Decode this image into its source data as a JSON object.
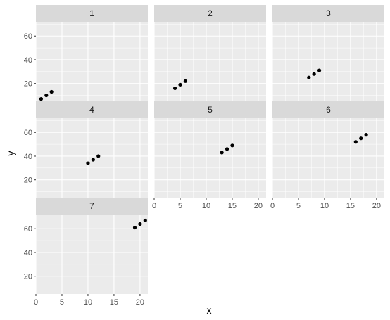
{
  "chart_data": {
    "type": "scatter",
    "xlabel": "x",
    "ylabel": "y",
    "xlim": [
      0,
      21.5
    ],
    "ylim": [
      5,
      72
    ],
    "xticks": [
      0,
      5,
      10,
      15,
      20
    ],
    "yticks": [
      20,
      40,
      60
    ],
    "grid": true,
    "point_color": "#000000",
    "panel_background": "#ebebeb",
    "strip_background": "#d9d9d9",
    "grid_color": "#ffffff",
    "facets": [
      {
        "label": "1",
        "x": [
          1,
          2,
          3
        ],
        "y": [
          7,
          10,
          13
        ]
      },
      {
        "label": "2",
        "x": [
          4,
          5,
          6
        ],
        "y": [
          16,
          19,
          22
        ]
      },
      {
        "label": "3",
        "x": [
          7,
          8,
          9
        ],
        "y": [
          25,
          28,
          31
        ]
      },
      {
        "label": "4",
        "x": [
          10,
          11,
          12
        ],
        "y": [
          34,
          37,
          40
        ]
      },
      {
        "label": "5",
        "x": [
          13,
          14,
          15
        ],
        "y": [
          43,
          46,
          49
        ]
      },
      {
        "label": "6",
        "x": [
          16,
          17,
          18
        ],
        "y": [
          52,
          55,
          58
        ]
      },
      {
        "label": "7",
        "x": [
          19,
          20,
          21
        ],
        "y": [
          61,
          64,
          67
        ]
      }
    ]
  }
}
